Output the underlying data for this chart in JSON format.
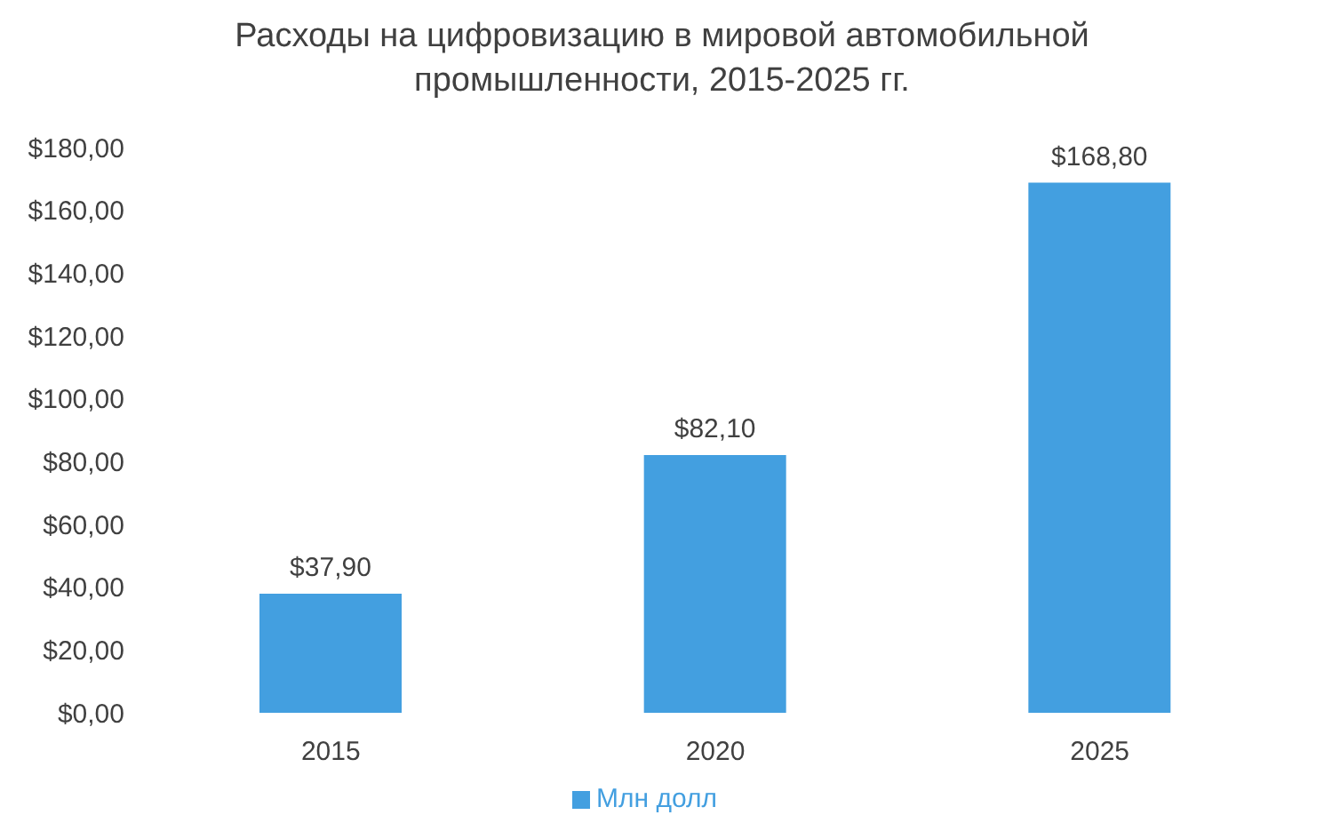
{
  "chart_data": {
    "type": "bar",
    "title": "Расходы на цифровизацию в мировой автомобильной промышленности, 2015-2025 гг.",
    "categories": [
      "2015",
      "2020",
      "2025"
    ],
    "series": [
      {
        "name": "Млн долл",
        "color": "#439fe0",
        "values": [
          37.9,
          82.1,
          168.8
        ],
        "value_labels": [
          "$37,90",
          "$82,10",
          "$168,80"
        ]
      }
    ],
    "ylim": [
      0,
      180
    ],
    "yticks": [
      {
        "value": 0,
        "label": "$0,00"
      },
      {
        "value": 20,
        "label": "$20,00"
      },
      {
        "value": 40,
        "label": "$40,00"
      },
      {
        "value": 60,
        "label": "$60,00"
      },
      {
        "value": 80,
        "label": "$80,00"
      },
      {
        "value": 100,
        "label": "$100,00"
      },
      {
        "value": 120,
        "label": "$120,00"
      },
      {
        "value": 140,
        "label": "$140,00"
      },
      {
        "value": 160,
        "label": "$160,00"
      },
      {
        "value": 180,
        "label": "$180,00"
      }
    ],
    "grid": false,
    "legend": "bottom"
  }
}
